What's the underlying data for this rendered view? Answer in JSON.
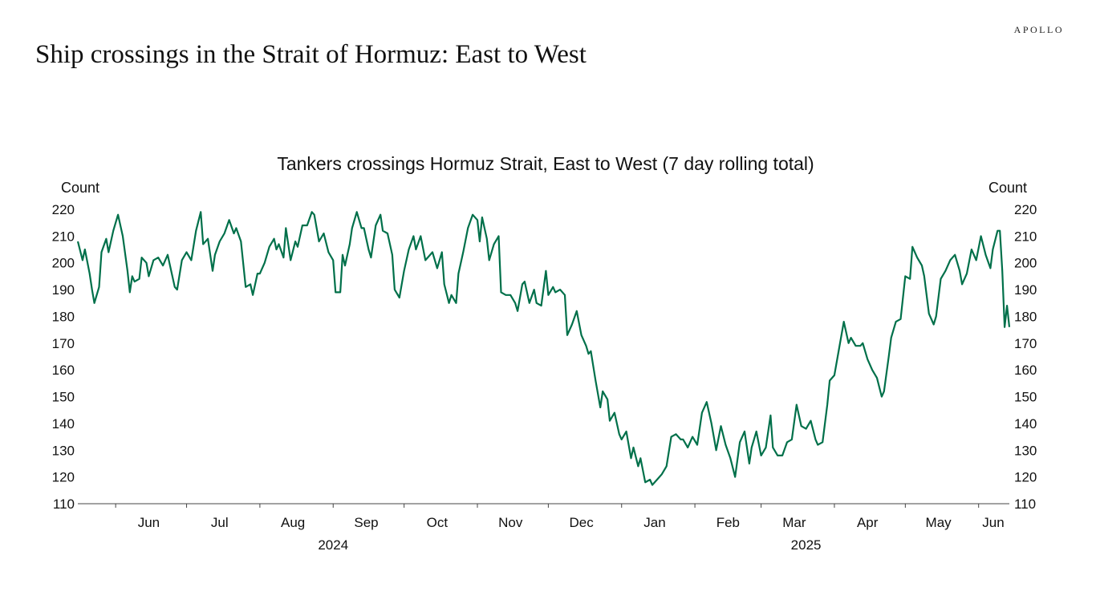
{
  "brand": "APOLLO",
  "slide_title": "Ship crossings in the Strait of Hormuz: East to West",
  "chart_data": {
    "type": "line",
    "title": "Tankers crossings Hormuz Strait, East to West (7 day rolling total)",
    "ylabel_left": "Count",
    "ylabel_right": "Count",
    "ylim": [
      110,
      220
    ],
    "yticks": [
      110,
      120,
      130,
      140,
      150,
      160,
      170,
      180,
      190,
      200,
      210,
      220
    ],
    "xlim": [
      "2024-05-16",
      "2025-06-14"
    ],
    "month_labels": [
      {
        "label": "Jun",
        "date": "2024-06-15"
      },
      {
        "label": "Jul",
        "date": "2024-07-15"
      },
      {
        "label": "Aug",
        "date": "2024-08-15"
      },
      {
        "label": "Sep",
        "date": "2024-09-15"
      },
      {
        "label": "Oct",
        "date": "2024-10-15"
      },
      {
        "label": "Nov",
        "date": "2024-11-15"
      },
      {
        "label": "Dec",
        "date": "2024-12-15"
      },
      {
        "label": "Jan",
        "date": "2025-01-15"
      },
      {
        "label": "Feb",
        "date": "2025-02-15"
      },
      {
        "label": "Mar",
        "date": "2025-03-15"
      },
      {
        "label": "Apr",
        "date": "2025-04-15"
      },
      {
        "label": "May",
        "date": "2025-05-15"
      },
      {
        "label": "Jun",
        "date": "2025-06-15"
      }
    ],
    "month_ticks": [
      "2024-06-01",
      "2024-07-01",
      "2024-08-01",
      "2024-09-01",
      "2024-10-01",
      "2024-11-01",
      "2024-12-01",
      "2025-01-01",
      "2025-02-01",
      "2025-03-01",
      "2025-04-01",
      "2025-05-01",
      "2025-06-01"
    ],
    "year_labels": [
      {
        "label": "2024",
        "date": "2024-09-01"
      },
      {
        "label": "2025",
        "date": "2025-03-20"
      }
    ],
    "line_color": "#00704A",
    "grid": false,
    "series": [
      {
        "values": [
          [
            "2024-05-16",
            208
          ],
          [
            "2024-05-18",
            201
          ],
          [
            "2024-05-19",
            205
          ],
          [
            "2024-05-21",
            196
          ],
          [
            "2024-05-22",
            190
          ],
          [
            "2024-05-23",
            185
          ],
          [
            "2024-05-25",
            191
          ],
          [
            "2024-05-26",
            204
          ],
          [
            "2024-05-28",
            209
          ],
          [
            "2024-05-29",
            204
          ],
          [
            "2024-05-31",
            212
          ],
          [
            "2024-06-02",
            218
          ],
          [
            "2024-06-04",
            210
          ],
          [
            "2024-06-06",
            197
          ],
          [
            "2024-06-07",
            189
          ],
          [
            "2024-06-08",
            195
          ],
          [
            "2024-06-09",
            193
          ],
          [
            "2024-06-11",
            194
          ],
          [
            "2024-06-12",
            202
          ],
          [
            "2024-06-14",
            200
          ],
          [
            "2024-06-15",
            195
          ],
          [
            "2024-06-17",
            201
          ],
          [
            "2024-06-19",
            202
          ],
          [
            "2024-06-21",
            199
          ],
          [
            "2024-06-23",
            203
          ],
          [
            "2024-06-24",
            199
          ],
          [
            "2024-06-26",
            191
          ],
          [
            "2024-06-27",
            190
          ],
          [
            "2024-06-29",
            201
          ],
          [
            "2024-07-01",
            204
          ],
          [
            "2024-07-03",
            201
          ],
          [
            "2024-07-05",
            212
          ],
          [
            "2024-07-07",
            219
          ],
          [
            "2024-07-08",
            207
          ],
          [
            "2024-07-10",
            209
          ],
          [
            "2024-07-12",
            197
          ],
          [
            "2024-07-13",
            203
          ],
          [
            "2024-07-15",
            208
          ],
          [
            "2024-07-17",
            211
          ],
          [
            "2024-07-19",
            216
          ],
          [
            "2024-07-21",
            211
          ],
          [
            "2024-07-22",
            213
          ],
          [
            "2024-07-24",
            208
          ],
          [
            "2024-07-26",
            191
          ],
          [
            "2024-07-28",
            192
          ],
          [
            "2024-07-29",
            188
          ],
          [
            "2024-07-31",
            196
          ],
          [
            "2024-08-01",
            196
          ],
          [
            "2024-08-03",
            200
          ],
          [
            "2024-08-05",
            206
          ],
          [
            "2024-08-07",
            209
          ],
          [
            "2024-08-08",
            205
          ],
          [
            "2024-08-09",
            207
          ],
          [
            "2024-08-11",
            202
          ],
          [
            "2024-08-12",
            213
          ],
          [
            "2024-08-14",
            201
          ],
          [
            "2024-08-16",
            208
          ],
          [
            "2024-08-17",
            206
          ],
          [
            "2024-08-19",
            214
          ],
          [
            "2024-08-21",
            214
          ],
          [
            "2024-08-23",
            219
          ],
          [
            "2024-08-24",
            218
          ],
          [
            "2024-08-26",
            208
          ],
          [
            "2024-08-28",
            211
          ],
          [
            "2024-08-30",
            204
          ],
          [
            "2024-09-01",
            201
          ],
          [
            "2024-09-02",
            189
          ],
          [
            "2024-09-04",
            189
          ],
          [
            "2024-09-05",
            203
          ],
          [
            "2024-09-06",
            199
          ],
          [
            "2024-09-08",
            207
          ],
          [
            "2024-09-09",
            213
          ],
          [
            "2024-09-11",
            219
          ],
          [
            "2024-09-13",
            213
          ],
          [
            "2024-09-14",
            213
          ],
          [
            "2024-09-16",
            205
          ],
          [
            "2024-09-17",
            202
          ],
          [
            "2024-09-19",
            214
          ],
          [
            "2024-09-21",
            218
          ],
          [
            "2024-09-22",
            212
          ],
          [
            "2024-09-24",
            211
          ],
          [
            "2024-09-26",
            203
          ],
          [
            "2024-09-27",
            190
          ],
          [
            "2024-09-29",
            187
          ],
          [
            "2024-10-01",
            197
          ],
          [
            "2024-10-03",
            205
          ],
          [
            "2024-10-05",
            210
          ],
          [
            "2024-10-06",
            205
          ],
          [
            "2024-10-08",
            210
          ],
          [
            "2024-10-10",
            201
          ],
          [
            "2024-10-11",
            202
          ],
          [
            "2024-10-13",
            204
          ],
          [
            "2024-10-15",
            198
          ],
          [
            "2024-10-17",
            204
          ],
          [
            "2024-10-18",
            192
          ],
          [
            "2024-10-20",
            185
          ],
          [
            "2024-10-21",
            188
          ],
          [
            "2024-10-23",
            185
          ],
          [
            "2024-10-24",
            196
          ],
          [
            "2024-10-26",
            204
          ],
          [
            "2024-10-28",
            213
          ],
          [
            "2024-10-30",
            218
          ],
          [
            "2024-11-01",
            216
          ],
          [
            "2024-11-02",
            208
          ],
          [
            "2024-11-03",
            217
          ],
          [
            "2024-11-05",
            209
          ],
          [
            "2024-11-06",
            201
          ],
          [
            "2024-11-08",
            207
          ],
          [
            "2024-11-10",
            210
          ],
          [
            "2024-11-11",
            189
          ],
          [
            "2024-11-13",
            188
          ],
          [
            "2024-11-15",
            188
          ],
          [
            "2024-11-17",
            185
          ],
          [
            "2024-11-18",
            182
          ],
          [
            "2024-11-20",
            192
          ],
          [
            "2024-11-21",
            193
          ],
          [
            "2024-11-23",
            185
          ],
          [
            "2024-11-25",
            190
          ],
          [
            "2024-11-26",
            185
          ],
          [
            "2024-11-28",
            184
          ],
          [
            "2024-11-30",
            197
          ],
          [
            "2024-12-01",
            188
          ],
          [
            "2024-12-03",
            191
          ],
          [
            "2024-12-04",
            189
          ],
          [
            "2024-12-06",
            190
          ],
          [
            "2024-12-08",
            188
          ],
          [
            "2024-12-09",
            173
          ],
          [
            "2024-12-11",
            177
          ],
          [
            "2024-12-13",
            182
          ],
          [
            "2024-12-15",
            173
          ],
          [
            "2024-12-17",
            169
          ],
          [
            "2024-12-18",
            166
          ],
          [
            "2024-12-19",
            167
          ],
          [
            "2024-12-21",
            156
          ],
          [
            "2024-12-23",
            146
          ],
          [
            "2024-12-24",
            152
          ],
          [
            "2024-12-26",
            149
          ],
          [
            "2024-12-27",
            141
          ],
          [
            "2024-12-29",
            144
          ],
          [
            "2024-12-31",
            136
          ],
          [
            "2025-01-01",
            134
          ],
          [
            "2025-01-03",
            137
          ],
          [
            "2025-01-05",
            127
          ],
          [
            "2025-01-06",
            131
          ],
          [
            "2025-01-08",
            124
          ],
          [
            "2025-01-09",
            127
          ],
          [
            "2025-01-11",
            118
          ],
          [
            "2025-01-13",
            119
          ],
          [
            "2025-01-14",
            117
          ],
          [
            "2025-01-16",
            119
          ],
          [
            "2025-01-18",
            121
          ],
          [
            "2025-01-20",
            124
          ],
          [
            "2025-01-22",
            135
          ],
          [
            "2025-01-24",
            136
          ],
          [
            "2025-01-26",
            134
          ],
          [
            "2025-01-27",
            134
          ],
          [
            "2025-01-29",
            131
          ],
          [
            "2025-01-31",
            135
          ],
          [
            "2025-02-02",
            132
          ],
          [
            "2025-02-04",
            144
          ],
          [
            "2025-02-06",
            148
          ],
          [
            "2025-02-08",
            140
          ],
          [
            "2025-02-10",
            130
          ],
          [
            "2025-02-12",
            139
          ],
          [
            "2025-02-14",
            132
          ],
          [
            "2025-02-16",
            127
          ],
          [
            "2025-02-18",
            120
          ],
          [
            "2025-02-20",
            133
          ],
          [
            "2025-02-22",
            137
          ],
          [
            "2025-02-24",
            125
          ],
          [
            "2025-02-25",
            131
          ],
          [
            "2025-02-27",
            137
          ],
          [
            "2025-03-01",
            128
          ],
          [
            "2025-03-03",
            131
          ],
          [
            "2025-03-05",
            143
          ],
          [
            "2025-03-06",
            131
          ],
          [
            "2025-03-08",
            128
          ],
          [
            "2025-03-10",
            128
          ],
          [
            "2025-03-12",
            133
          ],
          [
            "2025-03-14",
            134
          ],
          [
            "2025-03-16",
            147
          ],
          [
            "2025-03-18",
            139
          ],
          [
            "2025-03-20",
            138
          ],
          [
            "2025-03-22",
            141
          ],
          [
            "2025-03-24",
            134
          ],
          [
            "2025-03-25",
            132
          ],
          [
            "2025-03-27",
            133
          ],
          [
            "2025-03-29",
            147
          ],
          [
            "2025-03-30",
            156
          ],
          [
            "2025-04-01",
            158
          ],
          [
            "2025-04-03",
            168
          ],
          [
            "2025-04-05",
            178
          ],
          [
            "2025-04-07",
            170
          ],
          [
            "2025-04-08",
            172
          ],
          [
            "2025-04-10",
            169
          ],
          [
            "2025-04-12",
            169
          ],
          [
            "2025-04-13",
            170
          ],
          [
            "2025-04-15",
            164
          ],
          [
            "2025-04-17",
            160
          ],
          [
            "2025-04-19",
            157
          ],
          [
            "2025-04-21",
            150
          ],
          [
            "2025-04-22",
            152
          ],
          [
            "2025-04-24",
            165
          ],
          [
            "2025-04-25",
            172
          ],
          [
            "2025-04-27",
            178
          ],
          [
            "2025-04-29",
            179
          ],
          [
            "2025-05-01",
            195
          ],
          [
            "2025-05-03",
            194
          ],
          [
            "2025-05-04",
            206
          ],
          [
            "2025-05-06",
            202
          ],
          [
            "2025-05-08",
            199
          ],
          [
            "2025-05-09",
            195
          ],
          [
            "2025-05-11",
            181
          ],
          [
            "2025-05-13",
            177
          ],
          [
            "2025-05-14",
            180
          ],
          [
            "2025-05-16",
            194
          ],
          [
            "2025-05-18",
            197
          ],
          [
            "2025-05-20",
            201
          ],
          [
            "2025-05-22",
            203
          ],
          [
            "2025-05-24",
            197
          ],
          [
            "2025-05-25",
            192
          ],
          [
            "2025-05-27",
            196
          ],
          [
            "2025-05-29",
            205
          ],
          [
            "2025-05-31",
            201
          ],
          [
            "2025-06-02",
            210
          ],
          [
            "2025-06-04",
            203
          ],
          [
            "2025-06-06",
            198
          ],
          [
            "2025-06-07",
            205
          ],
          [
            "2025-06-09",
            212
          ],
          [
            "2025-06-10",
            212
          ],
          [
            "2025-06-11",
            197
          ],
          [
            "2025-06-12",
            176
          ],
          [
            "2025-06-13",
            184
          ],
          [
            "2025-06-14",
            176
          ]
        ]
      }
    ]
  }
}
